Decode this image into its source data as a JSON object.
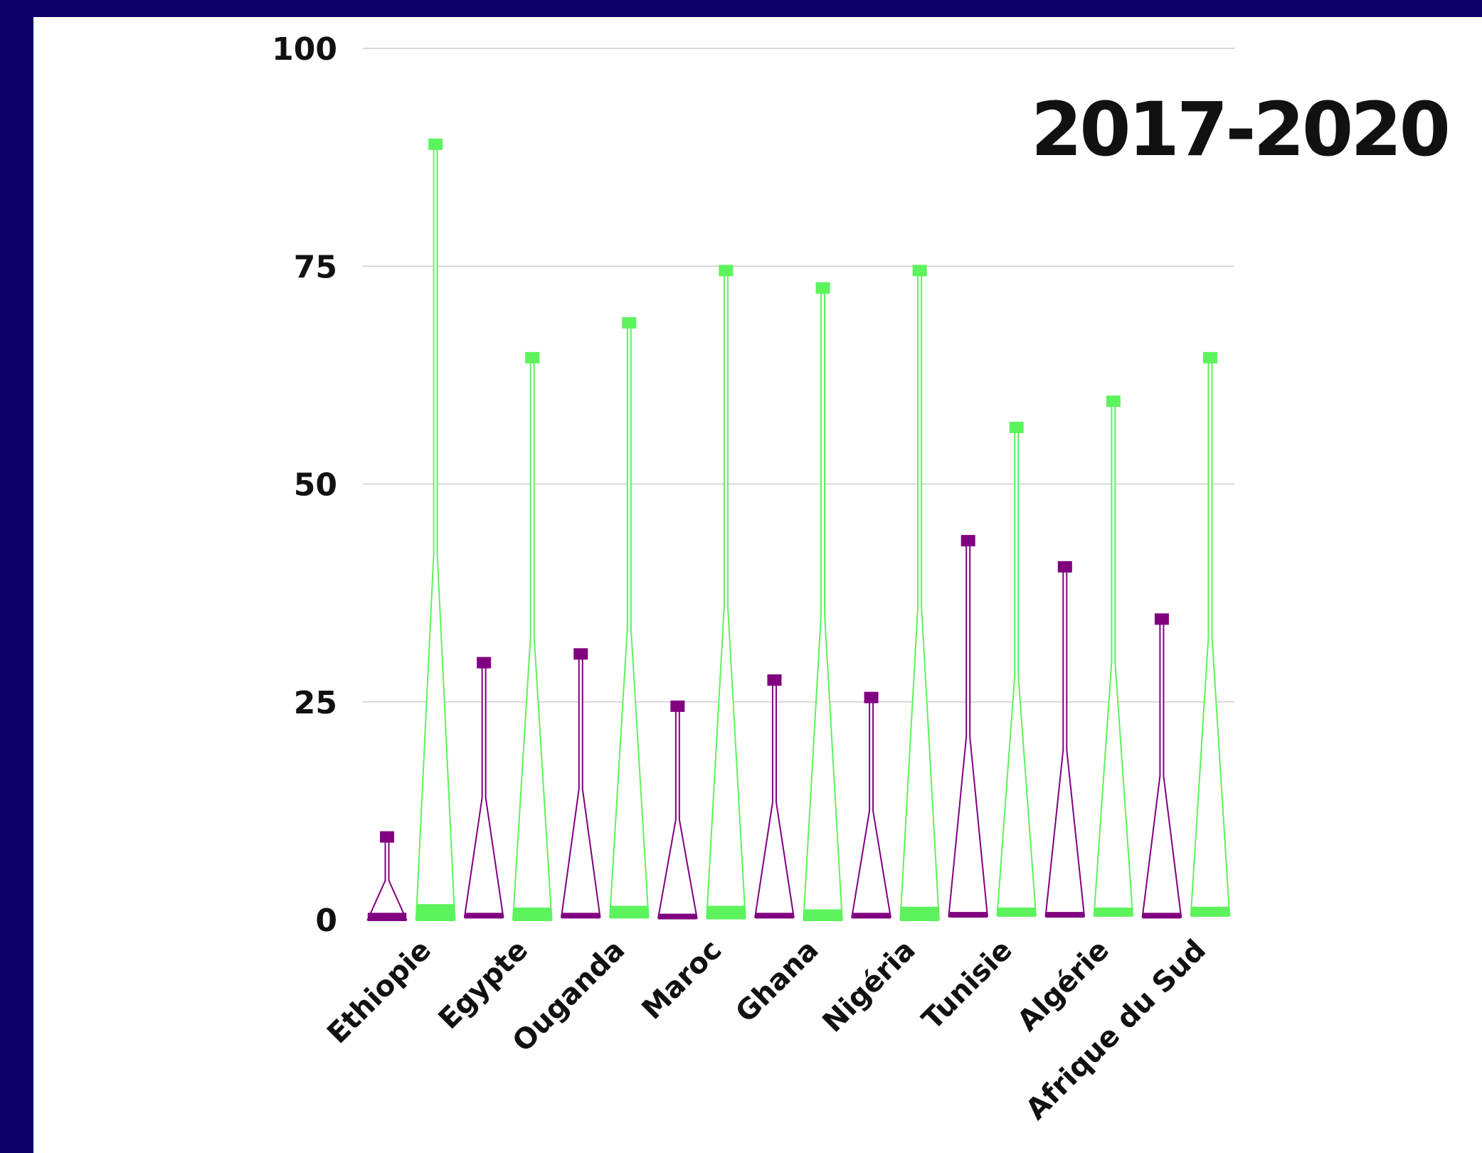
{
  "chart_data": {
    "type": "violin",
    "title": "2017-2020",
    "xlabel": "",
    "ylabel": "",
    "ylim": [
      0,
      100
    ],
    "yticks": [
      0,
      25,
      50,
      75,
      100
    ],
    "grid": true,
    "legend": "none",
    "categories": [
      "Ethiopie",
      "Egypte",
      "Ouganda",
      "Maroc",
      "Ghana",
      "Nigéria",
      "Tunisie",
      "Algérie",
      "Afrique du Sud"
    ],
    "series": [
      {
        "color": "#800080",
        "min": [
          0,
          0.3,
          0.3,
          0.2,
          0.3,
          0.3,
          0.4,
          0.4,
          0.3
        ],
        "max": [
          9.5,
          29.5,
          30.5,
          24.5,
          27.5,
          25.5,
          43.5,
          40.5,
          34.5
        ],
        "bulge": [
          4.5,
          14,
          15,
          11.5,
          13.5,
          12.5,
          21,
          19.5,
          16.5
        ],
        "median": [
          0.3,
          0.3,
          0.3,
          0.2,
          0.3,
          0.3,
          0.4,
          0.4,
          0.3
        ]
      },
      {
        "color": "#5cf35c",
        "min": [
          0,
          0,
          0.3,
          0.2,
          0,
          0,
          0.5,
          0.5,
          0.5
        ],
        "max": [
          89,
          64.5,
          68.5,
          74.5,
          72.5,
          74.5,
          56.5,
          59.5,
          64.5
        ],
        "bulge": [
          42,
          32.5,
          33.5,
          36,
          35,
          36,
          28,
          29.5,
          32.5
        ],
        "median": [
          1.3,
          0.9,
          1.1,
          1.1,
          0.7,
          1.0,
          0.9,
          0.9,
          1.0
        ]
      }
    ]
  }
}
